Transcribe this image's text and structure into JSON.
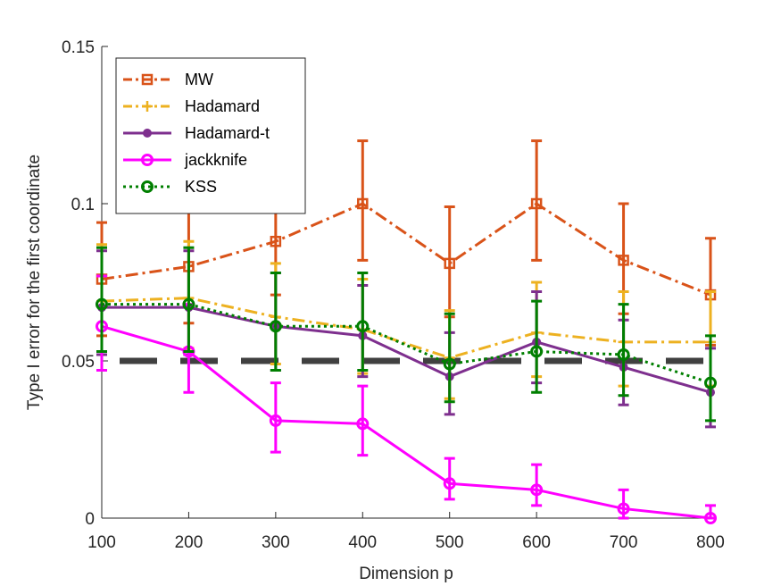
{
  "chart_data": {
    "type": "line",
    "title": "",
    "xlabel": "Dimension p",
    "ylabel": "Type I error for the first coordinate",
    "xlim": [
      100,
      800
    ],
    "ylim": [
      0,
      0.15
    ],
    "x": [
      100,
      200,
      300,
      400,
      500,
      600,
      700,
      800
    ],
    "xticks": [
      "100",
      "200",
      "300",
      "400",
      "500",
      "600",
      "700",
      "800"
    ],
    "yticks": [
      {
        "value": 0,
        "label": "0"
      },
      {
        "value": 0.05,
        "label": "0.05"
      },
      {
        "value": 0.1,
        "label": "0.1"
      },
      {
        "value": 0.15,
        "label": "0.15"
      }
    ],
    "reference_line": {
      "value": 0.05,
      "color": "#404040",
      "style": "dashed"
    },
    "legend_position": "top-left",
    "series": [
      {
        "name": "MW",
        "color": "#D95319",
        "line_style": "dashdot",
        "marker": "square",
        "values": [
          0.076,
          0.08,
          0.088,
          0.1,
          0.081,
          0.1,
          0.082,
          0.071
        ],
        "lower": [
          0.058,
          0.062,
          0.071,
          0.082,
          0.064,
          0.082,
          0.065,
          0.055
        ],
        "upper": [
          0.094,
          0.098,
          0.107,
          0.12,
          0.099,
          0.12,
          0.1,
          0.089
        ]
      },
      {
        "name": "Hadamard",
        "color": "#EDB120",
        "line_style": "dashdot",
        "marker": "plus",
        "values": [
          0.069,
          0.07,
          0.064,
          0.06,
          0.051,
          0.059,
          0.056,
          0.056
        ],
        "lower": [
          0.053,
          0.054,
          0.049,
          0.046,
          0.038,
          0.045,
          0.042,
          0.042
        ],
        "upper": [
          0.087,
          0.088,
          0.081,
          0.076,
          0.066,
          0.075,
          0.072,
          0.072
        ]
      },
      {
        "name": "Hadamard-t",
        "color": "#7E2F8E",
        "line_style": "solid",
        "marker": "dot",
        "values": [
          0.067,
          0.067,
          0.061,
          0.058,
          0.045,
          0.056,
          0.048,
          0.04
        ],
        "lower": [
          0.052,
          0.052,
          0.047,
          0.045,
          0.033,
          0.043,
          0.036,
          0.029
        ],
        "upper": [
          0.085,
          0.085,
          0.078,
          0.074,
          0.059,
          0.072,
          0.063,
          0.054
        ]
      },
      {
        "name": "jackknife",
        "color": "#FF00FF",
        "line_style": "solid",
        "marker": "circle",
        "values": [
          0.061,
          0.053,
          0.031,
          0.03,
          0.011,
          0.009,
          0.003,
          0.0
        ],
        "lower": [
          0.047,
          0.04,
          0.021,
          0.02,
          0.006,
          0.004,
          0.0,
          0.0
        ],
        "upper": [
          0.077,
          0.068,
          0.043,
          0.042,
          0.019,
          0.017,
          0.009,
          0.004
        ]
      },
      {
        "name": "KSS",
        "color": "#007F00",
        "line_style": "dotted",
        "marker": "circle",
        "values": [
          0.068,
          0.068,
          0.061,
          0.061,
          0.049,
          0.053,
          0.052,
          0.043
        ],
        "lower": [
          0.053,
          0.053,
          0.047,
          0.047,
          0.037,
          0.04,
          0.039,
          0.031
        ],
        "upper": [
          0.086,
          0.086,
          0.078,
          0.078,
          0.065,
          0.069,
          0.068,
          0.058
        ]
      }
    ]
  }
}
